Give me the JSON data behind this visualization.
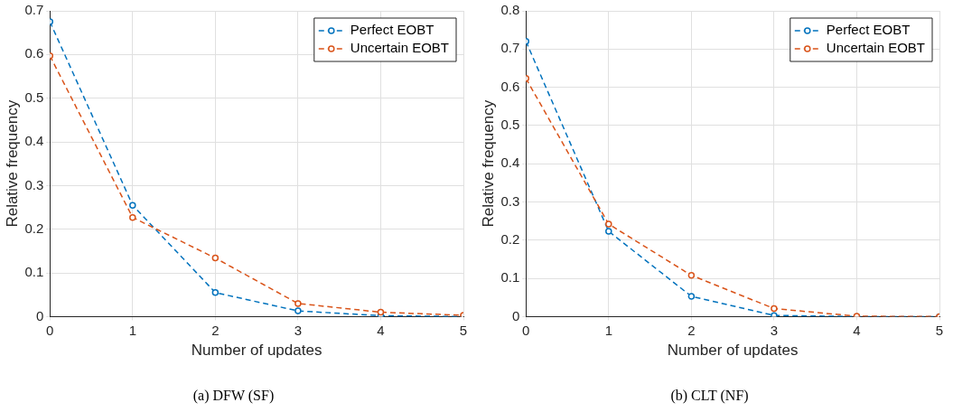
{
  "chart_data": [
    {
      "type": "line",
      "title": "(a) DFW (SF)",
      "xlabel": "Number of updates",
      "ylabel": "Relative frequency",
      "x": [
        0,
        1,
        2,
        3,
        4,
        5
      ],
      "xlim": [
        0,
        5
      ],
      "xticks": [
        0,
        1,
        2,
        3,
        4,
        5
      ],
      "ylim": [
        0,
        0.7
      ],
      "yticks": [
        0,
        0.1,
        0.2,
        0.3,
        0.4,
        0.5,
        0.6,
        0.7
      ],
      "grid": true,
      "legend": "top right",
      "marker": "circle",
      "line_style": "dashed",
      "series": [
        {
          "name": "Perfect EOBT",
          "color": "#0072bd",
          "values": [
            0.675,
            0.255,
            0.055,
            0.013,
            0.002,
            0.0
          ]
        },
        {
          "name": "Uncertain EOBT",
          "color": "#d95319",
          "values": [
            0.597,
            0.227,
            0.134,
            0.03,
            0.01,
            0.003
          ]
        }
      ]
    },
    {
      "type": "line",
      "title": "(b) CLT (NF)",
      "xlabel": "Number of updates",
      "ylabel": "Relative frequency",
      "x": [
        0,
        1,
        2,
        3,
        4,
        5
      ],
      "xlim": [
        0,
        5
      ],
      "xticks": [
        0,
        1,
        2,
        3,
        4,
        5
      ],
      "ylim": [
        0,
        0.8
      ],
      "yticks": [
        0,
        0.1,
        0.2,
        0.3,
        0.4,
        0.5,
        0.6,
        0.7,
        0.8
      ],
      "grid": true,
      "legend": "top right",
      "marker": "circle",
      "line_style": "dashed",
      "series": [
        {
          "name": "Perfect EOBT",
          "color": "#0072bd",
          "values": [
            0.72,
            0.223,
            0.053,
            0.003,
            0.0,
            0.0
          ]
        },
        {
          "name": "Uncertain EOBT",
          "color": "#d95319",
          "values": [
            0.623,
            0.242,
            0.108,
            0.021,
            0.001,
            0.0
          ]
        }
      ]
    }
  ]
}
